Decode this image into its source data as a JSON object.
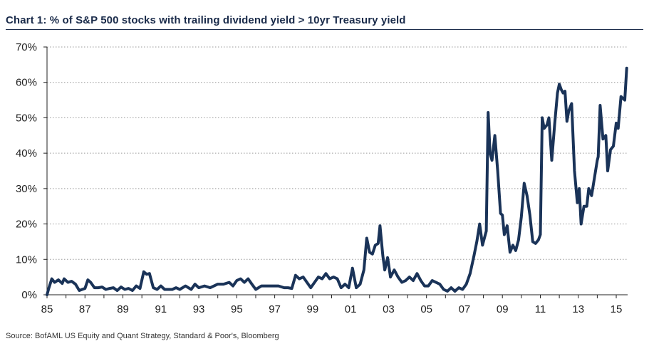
{
  "title": "Chart 1:  % of S&P 500 stocks with trailing dividend yield > 10yr Treasury yield",
  "source": "Source:  BofAML US Equity and Quant Strategy, Standard & Poor's, Bloomberg",
  "colors": {
    "line": "#1a3358",
    "grid": "#9a9a9a",
    "axis": "#222222",
    "title": "#1a2b4a"
  },
  "chart_data": {
    "type": "line",
    "title": "% of S&P 500 stocks with trailing dividend yield > 10yr Treasury yield",
    "xlabel": "",
    "ylabel": "",
    "xlim": [
      1985,
      2015.6
    ],
    "ylim": [
      0,
      70
    ],
    "grid": true,
    "legend": "none",
    "y_ticks": [
      "0%",
      "10%",
      "20%",
      "30%",
      "40%",
      "50%",
      "60%",
      "70%"
    ],
    "y_tick_values": [
      0,
      10,
      20,
      30,
      40,
      50,
      60,
      70
    ],
    "x_ticks": [
      "85",
      "87",
      "89",
      "91",
      "93",
      "95",
      "97",
      "99",
      "01",
      "03",
      "05",
      "07",
      "09",
      "11",
      "13",
      "15"
    ],
    "x_tick_values": [
      1985,
      1987,
      1989,
      1991,
      1993,
      1995,
      1997,
      1999,
      2001,
      2003,
      2005,
      2007,
      2009,
      2011,
      2013,
      2015
    ],
    "series": [
      {
        "name": "",
        "x": [
          1985.0,
          1985.1,
          1985.25,
          1985.4,
          1985.6,
          1985.8,
          1985.9,
          1986.1,
          1986.3,
          1986.5,
          1986.7,
          1986.85,
          1987.0,
          1987.15,
          1987.3,
          1987.5,
          1987.7,
          1987.9,
          1988.1,
          1988.3,
          1988.5,
          1988.7,
          1988.9,
          1989.1,
          1989.3,
          1989.5,
          1989.7,
          1989.9,
          1990.1,
          1990.25,
          1990.4,
          1990.6,
          1990.8,
          1991.0,
          1991.2,
          1991.4,
          1991.6,
          1991.8,
          1992.0,
          1992.3,
          1992.6,
          1992.8,
          1993.0,
          1993.3,
          1993.6,
          1993.8,
          1994.0,
          1994.3,
          1994.6,
          1994.8,
          1995.0,
          1995.2,
          1995.4,
          1995.6,
          1995.8,
          1996.0,
          1996.3,
          1996.6,
          1996.9,
          1997.2,
          1997.5,
          1997.7,
          1997.9,
          1998.1,
          1998.3,
          1998.5,
          1998.7,
          1998.9,
          1999.1,
          1999.3,
          1999.5,
          1999.7,
          1999.9,
          2000.1,
          2000.3,
          2000.5,
          2000.7,
          2000.9,
          2001.1,
          2001.3,
          2001.5,
          2001.7,
          2001.85,
          2002.0,
          2002.15,
          2002.3,
          2002.45,
          2002.55,
          2002.7,
          2002.8,
          2002.95,
          2003.1,
          2003.3,
          2003.5,
          2003.7,
          2003.9,
          2004.1,
          2004.3,
          2004.5,
          2004.7,
          2004.9,
          2005.1,
          2005.3,
          2005.5,
          2005.7,
          2005.9,
          2006.1,
          2006.3,
          2006.5,
          2006.7,
          2006.9,
          2007.1,
          2007.3,
          2007.5,
          2007.65,
          2007.8,
          2007.95,
          2008.05,
          2008.15,
          2008.25,
          2008.35,
          2008.45,
          2008.6,
          2008.75,
          2008.9,
          2009.0,
          2009.1,
          2009.25,
          2009.4,
          2009.55,
          2009.7,
          2009.85,
          2010.0,
          2010.15,
          2010.3,
          2010.45,
          2010.6,
          2010.75,
          2010.9,
          2011.0,
          2011.1,
          2011.2,
          2011.35,
          2011.45,
          2011.6,
          2011.75,
          2011.9,
          2012.0,
          2012.1,
          2012.2,
          2012.3,
          2012.4,
          2012.5,
          2012.65,
          2012.8,
          2012.95,
          2013.05,
          2013.15,
          2013.3,
          2013.45,
          2013.55,
          2013.7,
          2013.85,
          2014.0,
          2014.05,
          2014.15,
          2014.3,
          2014.45,
          2014.55,
          2014.7,
          2014.85,
          2015.0,
          2015.1,
          2015.25,
          2015.45,
          2015.55
        ],
        "y": [
          0,
          2,
          4.5,
          3.5,
          4.2,
          3.2,
          4.5,
          3.5,
          3.8,
          3,
          1.2,
          1.5,
          1.8,
          4.2,
          3.5,
          2,
          2,
          2.2,
          1.5,
          1.8,
          2,
          1.2,
          2.2,
          1.5,
          1.8,
          1.2,
          2.5,
          1.8,
          6.5,
          5.8,
          6,
          2,
          1.5,
          2.5,
          1.5,
          1.5,
          1.5,
          2,
          1.5,
          2.5,
          1.5,
          3,
          2,
          2.5,
          2,
          2.5,
          3,
          3,
          3.5,
          2.5,
          4,
          4.5,
          3.5,
          4.5,
          3,
          1.5,
          2.5,
          2.5,
          2.5,
          2.5,
          2,
          2,
          1.8,
          5.5,
          4.5,
          5,
          3.5,
          2,
          3.5,
          5,
          4.5,
          6,
          4.5,
          5,
          4.5,
          2,
          3,
          2,
          7.5,
          2,
          3,
          7,
          16,
          12,
          11.5,
          14,
          14.5,
          19.5,
          11,
          7,
          10.5,
          5,
          7,
          5,
          3.5,
          4,
          5,
          4,
          6,
          4,
          2.5,
          2.5,
          4,
          3.5,
          3,
          1.5,
          1,
          2,
          1,
          2,
          1.5,
          3,
          6,
          11,
          15,
          20,
          14,
          16,
          18,
          51.5,
          40,
          38,
          45,
          35,
          23,
          22.5,
          17,
          19.5,
          12,
          14,
          12.5,
          15.5,
          22,
          31.5,
          28,
          22.5,
          15,
          14.5,
          15.5,
          17,
          50,
          47,
          48,
          50,
          38,
          48,
          57,
          59.5,
          58,
          57,
          57.5,
          49,
          52,
          54,
          35,
          26,
          30,
          20,
          25,
          25,
          30,
          28,
          33,
          38,
          39,
          53.5,
          44,
          45,
          35,
          41,
          42,
          48.5,
          47,
          56,
          55,
          64
        ]
      }
    ]
  }
}
